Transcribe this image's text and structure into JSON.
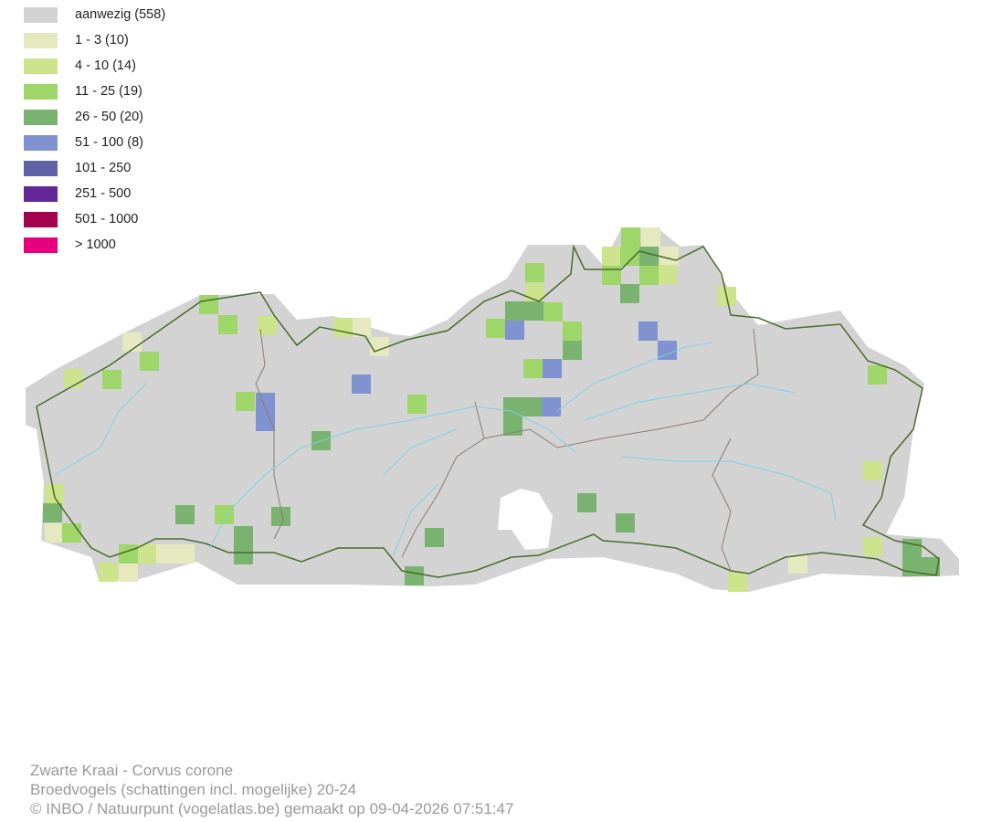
{
  "legend": [
    {
      "label": "aanwezig (558)",
      "color": "#d3d3d3"
    },
    {
      "label": "1 - 3 (10)",
      "color": "#e6e8bf"
    },
    {
      "label": "4 - 10 (14)",
      "color": "#cde38c"
    },
    {
      "label": "11 - 25 (19)",
      "color": "#9fd66a"
    },
    {
      "label": "26 - 50 (20)",
      "color": "#79b36f"
    },
    {
      "label": "51 - 100 (8)",
      "color": "#8092d0"
    },
    {
      "label": "101 - 250",
      "color": "#6063a6"
    },
    {
      "label": "251 - 500",
      "color": "#632896"
    },
    {
      "label": "501 - 1000",
      "color": "#a4044d"
    },
    {
      "label": "> 1000",
      "color": "#e6007e"
    }
  ],
  "map": {
    "region_outline_color": "#4a6b2e",
    "province_border_color": "#8c7b72",
    "river_color": "#7fcfe0"
  },
  "footer": {
    "species": "Zwarte Kraai - Corvus corone",
    "dataset": "Broedvogels (schattingen incl. mogelijke) 20-24",
    "credit": "© INBO / Natuurpunt (vogelatlas.be) gemaakt op 09-04-2026 07:51:47"
  }
}
